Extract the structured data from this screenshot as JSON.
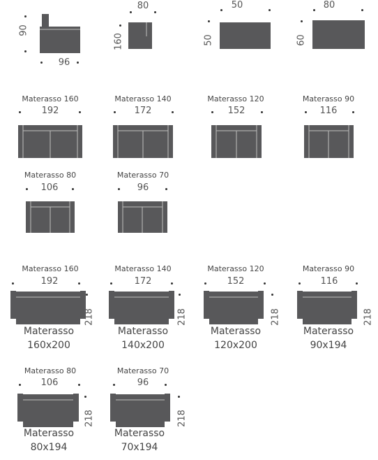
{
  "module_top": {
    "armchair": {
      "width": "96",
      "depth": "90"
    },
    "corner": {
      "width": "80",
      "depth": "160"
    },
    "pouf": {
      "width": "50",
      "depth": "50"
    },
    "bench": {
      "width": "80",
      "depth": "60"
    }
  },
  "closed_row1": [
    {
      "label": "Materasso 160",
      "width": "192"
    },
    {
      "label": "Materasso 140",
      "width": "172"
    },
    {
      "label": "Materasso 120",
      "width": "152"
    },
    {
      "label": "Materasso 90",
      "width": "116"
    }
  ],
  "closed_row2": [
    {
      "label": "Materasso 80",
      "width": "106"
    },
    {
      "label": "Materasso 70",
      "width": "96"
    }
  ],
  "open_row1": [
    {
      "label": "Materasso 160",
      "width": "192",
      "length": "218",
      "mattress_line1": "Materasso",
      "mattress_line2": "160x200"
    },
    {
      "label": "Materasso 140",
      "width": "172",
      "length": "218",
      "mattress_line1": "Materasso",
      "mattress_line2": "140x200"
    },
    {
      "label": "Materasso 120",
      "width": "152",
      "length": "218",
      "mattress_line1": "Materasso",
      "mattress_line2": "120x200"
    },
    {
      "label": "Materasso 90",
      "width": "116",
      "length": "218",
      "mattress_line1": "Materasso",
      "mattress_line2": "90x194"
    }
  ],
  "open_row2": [
    {
      "label": "Materasso 80",
      "width": "106",
      "length": "218",
      "mattress_line1": "Materasso",
      "mattress_line2": "80x194"
    },
    {
      "label": "Materasso 70",
      "width": "96",
      "length": "218",
      "mattress_line1": "Materasso",
      "mattress_line2": "70x194"
    }
  ],
  "colors": {
    "sofa": "#58585a",
    "line": "#bfbfbf",
    "text": "#555555"
  }
}
